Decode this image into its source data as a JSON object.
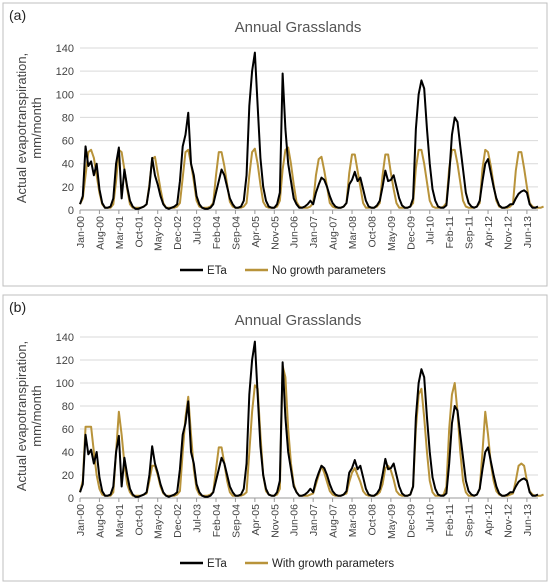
{
  "panels": [
    {
      "label": "(a)"
    },
    {
      "label": "(b)"
    }
  ],
  "colors": {
    "eta": "#000000",
    "model": "#b8933a"
  },
  "chart_data": [
    {
      "type": "line",
      "title": "Annual Grasslands",
      "ylabel": "Actual evapotranspiration, mm/month",
      "xlabel": "",
      "ylim": [
        0,
        140
      ],
      "yticks": [
        0,
        20,
        40,
        60,
        80,
        100,
        120,
        140
      ],
      "grid": "horizontal",
      "legend": "bottom",
      "x_tick_labels": [
        "Jan-00",
        "Aug-00",
        "Mar-01",
        "Oct-01",
        "May-02",
        "Dec-02",
        "Jul-03",
        "Feb-04",
        "Sep-04",
        "Apr-05",
        "Nov-05",
        "Jun-06",
        "Jan-07",
        "Aug-07",
        "Mar-08",
        "Oct-08",
        "May-09",
        "Dec-09",
        "Jul-10",
        "Feb-11",
        "Sep-11",
        "Apr-12",
        "Nov-12",
        "Jun-13"
      ],
      "x_start": "Jan-00",
      "series": [
        {
          "name": "ETa",
          "color": "#000000",
          "values": [
            5,
            12,
            55,
            38,
            42,
            30,
            40,
            18,
            6,
            2,
            2,
            3,
            10,
            40,
            54,
            10,
            35,
            20,
            8,
            3,
            1,
            1,
            2,
            3,
            5,
            20,
            45,
            30,
            22,
            12,
            5,
            2,
            1,
            2,
            3,
            5,
            25,
            55,
            65,
            84,
            40,
            30,
            12,
            5,
            2,
            1,
            1,
            2,
            5,
            15,
            25,
            35,
            30,
            20,
            10,
            5,
            2,
            2,
            3,
            8,
            30,
            90,
            120,
            136,
            90,
            45,
            20,
            8,
            3,
            2,
            2,
            5,
            15,
            118,
            70,
            40,
            25,
            10,
            5,
            2,
            2,
            3,
            5,
            8,
            5,
            15,
            22,
            28,
            26,
            20,
            12,
            6,
            3,
            2,
            2,
            3,
            6,
            22,
            26,
            33,
            25,
            28,
            18,
            8,
            3,
            2,
            2,
            4,
            8,
            20,
            34,
            25,
            26,
            30,
            20,
            10,
            4,
            2,
            2,
            3,
            10,
            70,
            100,
            112,
            105,
            70,
            40,
            18,
            8,
            3,
            2,
            2,
            4,
            30,
            65,
            80,
            76,
            55,
            35,
            15,
            6,
            3,
            2,
            3,
            8,
            25,
            40,
            44,
            32,
            20,
            10,
            4,
            2,
            2,
            3,
            5,
            5,
            10,
            14,
            16,
            17,
            15,
            5,
            2,
            2,
            3
          ]
        },
        {
          "name": "No growth parameters",
          "color": "#b8933a",
          "values": [
            5,
            10,
            30,
            50,
            52,
            45,
            30,
            15,
            5,
            2,
            2,
            2,
            5,
            25,
            52,
            50,
            35,
            18,
            5,
            2,
            2,
            2,
            2,
            3,
            5,
            22,
            44,
            46,
            32,
            18,
            6,
            2,
            2,
            2,
            2,
            3,
            6,
            28,
            50,
            52,
            40,
            25,
            8,
            3,
            2,
            2,
            2,
            3,
            6,
            30,
            50,
            50,
            38,
            22,
            7,
            3,
            2,
            2,
            2,
            3,
            6,
            30,
            50,
            53,
            40,
            22,
            7,
            3,
            2,
            2,
            2,
            3,
            8,
            35,
            52,
            54,
            40,
            22,
            7,
            3,
            2,
            2,
            2,
            3,
            6,
            30,
            44,
            46,
            34,
            20,
            6,
            3,
            2,
            2,
            2,
            3,
            6,
            32,
            48,
            48,
            34,
            20,
            6,
            2,
            2,
            2,
            2,
            3,
            6,
            30,
            48,
            48,
            32,
            18,
            6,
            2,
            2,
            2,
            2,
            3,
            6,
            36,
            52,
            52,
            40,
            24,
            8,
            3,
            2,
            2,
            2,
            3,
            6,
            36,
            52,
            52,
            40,
            24,
            8,
            3,
            2,
            2,
            2,
            3,
            6,
            36,
            52,
            50,
            38,
            22,
            8,
            3,
            2,
            2,
            2,
            3,
            6,
            34,
            50,
            50,
            36,
            20,
            6,
            3,
            2,
            2,
            2,
            3
          ]
        }
      ]
    },
    {
      "type": "line",
      "title": "Annual Grasslands",
      "ylabel": "Actual evapotranspiration, mm/month",
      "xlabel": "",
      "ylim": [
        0,
        140
      ],
      "yticks": [
        0,
        20,
        40,
        60,
        80,
        100,
        120,
        140
      ],
      "grid": "horizontal",
      "legend": "bottom",
      "x_tick_labels": [
        "Jan-00",
        "Aug-00",
        "Mar-01",
        "Oct-01",
        "May-02",
        "Dec-02",
        "Jul-03",
        "Feb-04",
        "Sep-04",
        "Apr-05",
        "Nov-05",
        "Jun-06",
        "Jan-07",
        "Aug-07",
        "Mar-08",
        "Oct-08",
        "May-09",
        "Dec-09",
        "Jul-10",
        "Feb-11",
        "Sep-11",
        "Apr-12",
        "Nov-12",
        "Jun-13"
      ],
      "x_start": "Jan-00",
      "series": [
        {
          "name": "ETa",
          "color": "#000000",
          "values": [
            5,
            12,
            55,
            38,
            42,
            30,
            40,
            18,
            6,
            2,
            2,
            3,
            10,
            40,
            54,
            10,
            35,
            20,
            8,
            3,
            1,
            1,
            2,
            3,
            5,
            20,
            45,
            30,
            22,
            12,
            5,
            2,
            1,
            2,
            3,
            5,
            25,
            55,
            65,
            84,
            40,
            30,
            12,
            5,
            2,
            1,
            1,
            2,
            5,
            15,
            25,
            35,
            30,
            20,
            10,
            5,
            2,
            2,
            3,
            8,
            30,
            90,
            120,
            136,
            90,
            45,
            20,
            8,
            3,
            2,
            2,
            5,
            15,
            118,
            70,
            40,
            25,
            10,
            5,
            2,
            2,
            3,
            5,
            8,
            5,
            15,
            22,
            28,
            26,
            20,
            12,
            6,
            3,
            2,
            2,
            3,
            6,
            22,
            26,
            33,
            25,
            28,
            18,
            8,
            3,
            2,
            2,
            4,
            8,
            20,
            34,
            25,
            26,
            30,
            20,
            10,
            4,
            2,
            2,
            3,
            10,
            70,
            100,
            112,
            105,
            70,
            40,
            18,
            8,
            3,
            2,
            2,
            4,
            30,
            65,
            80,
            76,
            55,
            35,
            15,
            6,
            3,
            2,
            3,
            8,
            25,
            40,
            44,
            32,
            20,
            10,
            4,
            2,
            2,
            3,
            5,
            5,
            10,
            14,
            16,
            17,
            15,
            5,
            2,
            2,
            3
          ]
        },
        {
          "name": "With growth parameters",
          "color": "#b8933a",
          "values": [
            5,
            15,
            62,
            62,
            62,
            40,
            20,
            8,
            3,
            2,
            2,
            2,
            5,
            40,
            75,
            55,
            30,
            12,
            5,
            2,
            2,
            2,
            2,
            3,
            4,
            15,
            28,
            28,
            20,
            10,
            4,
            2,
            2,
            2,
            2,
            3,
            6,
            40,
            70,
            88,
            55,
            25,
            8,
            3,
            2,
            2,
            2,
            3,
            5,
            25,
            44,
            44,
            30,
            15,
            5,
            2,
            2,
            2,
            2,
            3,
            5,
            40,
            75,
            98,
            95,
            55,
            20,
            6,
            3,
            2,
            2,
            3,
            8,
            115,
            105,
            60,
            30,
            12,
            5,
            2,
            2,
            2,
            2,
            3,
            4,
            12,
            20,
            28,
            22,
            14,
            6,
            3,
            2,
            2,
            2,
            3,
            4,
            14,
            22,
            26,
            20,
            14,
            6,
            3,
            2,
            2,
            2,
            3,
            5,
            12,
            26,
            28,
            24,
            16,
            6,
            3,
            2,
            2,
            2,
            3,
            10,
            60,
            90,
            95,
            70,
            40,
            15,
            5,
            2,
            2,
            2,
            3,
            10,
            60,
            90,
            100,
            75,
            40,
            15,
            5,
            2,
            2,
            2,
            3,
            8,
            40,
            75,
            55,
            30,
            15,
            6,
            3,
            2,
            2,
            2,
            3,
            4,
            15,
            28,
            30,
            28,
            15,
            6,
            3,
            2,
            2,
            2,
            3
          ]
        }
      ]
    }
  ]
}
